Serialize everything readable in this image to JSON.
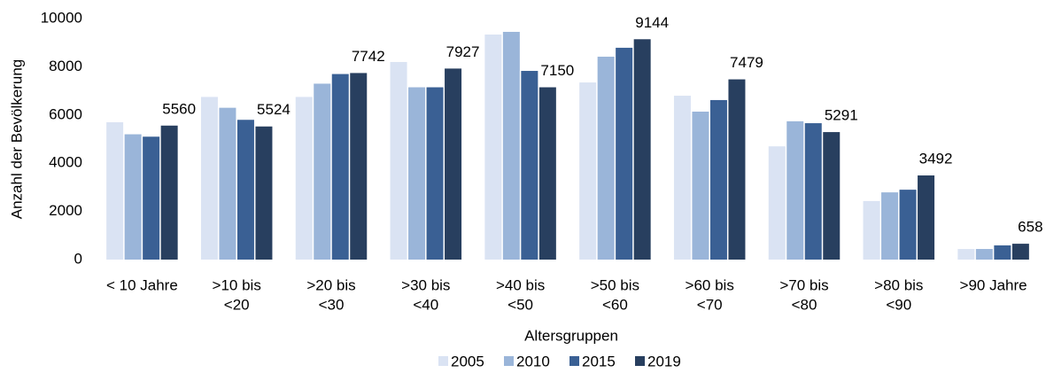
{
  "chart_data": {
    "type": "bar",
    "x_label": "Altersgruppen",
    "y_label": "Anzahl der Bevölkerung",
    "categories": [
      [
        "< 10 Jahre"
      ],
      [
        ">10 bis",
        "<20"
      ],
      [
        ">20 bis",
        "<30"
      ],
      [
        ">30 bis",
        "<40"
      ],
      [
        ">40 bis",
        "<50"
      ],
      [
        ">50 bis",
        "<60"
      ],
      [
        ">60 bis",
        "<70"
      ],
      [
        ">70 bis",
        "<80"
      ],
      [
        ">80 bis",
        "<90"
      ],
      [
        ">90 Jahre"
      ]
    ],
    "series": [
      {
        "name": "2005",
        "color": "#dae3f3",
        "values": [
          5700,
          6750,
          6750,
          8200,
          9340,
          7350,
          6800,
          4700,
          2430,
          440
        ]
      },
      {
        "name": "2010",
        "color": "#9ab5d9",
        "values": [
          5200,
          6300,
          7300,
          7150,
          9450,
          8420,
          6140,
          5740,
          2790,
          440
        ]
      },
      {
        "name": "2015",
        "color": "#3a6094",
        "values": [
          5100,
          5800,
          7700,
          7150,
          7830,
          8790,
          6620,
          5660,
          2900,
          590
        ]
      },
      {
        "name": "2019",
        "color": "#283f5f",
        "values": [
          5560,
          5524,
          7742,
          7927,
          7150,
          9144,
          7479,
          5291,
          3492,
          658
        ],
        "data_labels": true
      }
    ],
    "ylim": [
      0,
      10000
    ],
    "yticks": [
      0,
      2000,
      4000,
      6000,
      8000,
      10000
    ],
    "legend": "bottom"
  }
}
